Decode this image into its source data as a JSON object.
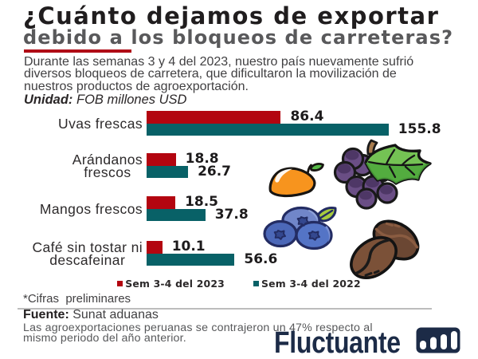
{
  "header": {
    "title_line1": "¿Cuánto dejamos de exportar",
    "title_line2": "debido a los bloqueos de carreteras?"
  },
  "intro": {
    "text": "Durante las semanas 3 y 4 del 2023, nuestro país nuevamente sufrió\ndiversos bloqueos de carretera, que dificultaron la movilización de\nnuestros productos de agroexportación.",
    "unit_label": "Unidad:",
    "unit_value": " FOB millones USD"
  },
  "chart_data": {
    "type": "bar",
    "orientation": "horizontal",
    "title": "¿Cuánto dejamos de exportar debido a los bloqueos de carreteras?",
    "unit": "FOB millones USD",
    "categories": [
      "Uvas frescas",
      "Arándanos\nfrescos",
      "Mangos frescos",
      "Café sin tostar ni\ndescafeinar"
    ],
    "series": [
      {
        "name": "Sem 3-4 del 2023",
        "color": "#b30510",
        "values": [
          86.4,
          18.8,
          18.5,
          10.1
        ]
      },
      {
        "name": "Sem 3-4 del 2022",
        "color": "#086167",
        "values": [
          155.8,
          26.7,
          37.8,
          56.6
        ]
      }
    ],
    "value_labels_shown": true,
    "axis_lines": false,
    "grid": false,
    "legend_position": "bottom-center",
    "xlim": [
      0,
      170
    ]
  },
  "legend": [
    {
      "label": "Sem 3-4 del 2023",
      "color": "#b30510"
    },
    {
      "label": "Sem 3-4 del 2022",
      "color": "#086167"
    }
  ],
  "footnote": "*Cifras  preliminares",
  "source": {
    "label": "Fuente:",
    "text": " Sunat aduanas"
  },
  "bottom_note": "Las agroexportaciones peruanas se contrajeron un 47% respecto al\nmismo periodo del año anterior.",
  "brand": {
    "name": "Fluctuante",
    "icon": "bar-chart-logo-icon",
    "color": "#1c2b47"
  },
  "colors": {
    "accent_red": "#b00c16",
    "bar_2023": "#b30510",
    "bar_2022": "#086167",
    "title_gray": "#59595b",
    "brand_navy": "#1c2b47"
  },
  "icons": [
    "mango-icon",
    "grapes-icon",
    "blueberries-icon",
    "coffee-beans-icon",
    "bar-chart-logo-icon"
  ]
}
